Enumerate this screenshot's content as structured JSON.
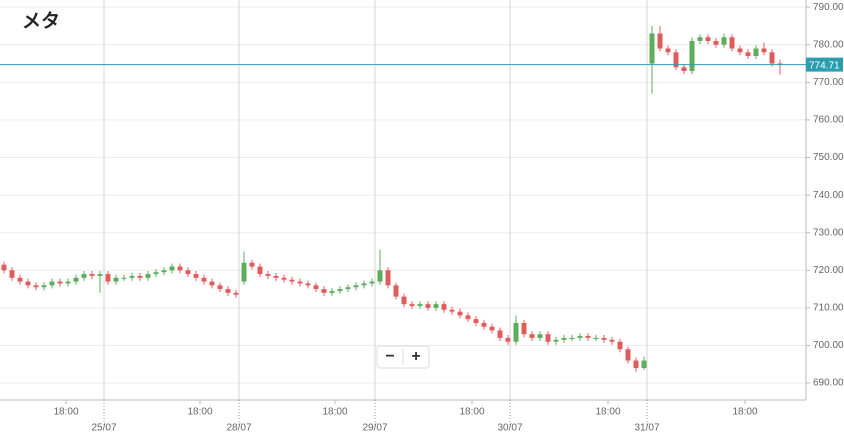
{
  "chart_data": {
    "type": "candlestick",
    "title": "メタ",
    "open": [
      721.5,
      720,
      718,
      717,
      716,
      715.5,
      716,
      717,
      716.5,
      717,
      718,
      719,
      718.5,
      719,
      717,
      718,
      718,
      718.5,
      718,
      719,
      719.5,
      720,
      721,
      720,
      719,
      718,
      717,
      716,
      715,
      714,
      717,
      722,
      721,
      719,
      718.5,
      718,
      717.5,
      717,
      716.5,
      716,
      715,
      714,
      714.5,
      715,
      715.5,
      716,
      716.5,
      717,
      720,
      716,
      713,
      711,
      710.5,
      711,
      710,
      711,
      709.5,
      709,
      708,
      707,
      706,
      705,
      704,
      702,
      701,
      706,
      703,
      702,
      703,
      701,
      701.5,
      702,
      702,
      702.5,
      702,
      702,
      701.5,
      701,
      699,
      696,
      694,
      775,
      783,
      779,
      778,
      774,
      773,
      781,
      782,
      781,
      780,
      782,
      779,
      778,
      777,
      779,
      778,
      775
    ],
    "high": [
      722.3,
      720.8,
      718.8,
      717.8,
      716.8,
      716.8,
      717.8,
      717.8,
      717.8,
      718.8,
      719.8,
      719.8,
      719.8,
      719.8,
      718.8,
      718.8,
      719.3,
      719.3,
      719.8,
      720.3,
      720.8,
      721.8,
      721.8,
      720.8,
      719.8,
      718.8,
      717.8,
      716.8,
      715.8,
      714.8,
      725,
      722.8,
      721.8,
      719.8,
      719.3,
      718.8,
      718.3,
      717.8,
      717.3,
      716.8,
      715.8,
      715.3,
      715.8,
      716.3,
      716.8,
      717.3,
      717.8,
      725.5,
      720.8,
      716.8,
      713.8,
      711.8,
      711.8,
      711.8,
      711.8,
      711.8,
      710.3,
      709.8,
      708.8,
      707.8,
      706.8,
      705.8,
      704.8,
      702.8,
      708,
      706.8,
      703.8,
      703.8,
      703.8,
      702.3,
      702.8,
      702.8,
      703.3,
      703.3,
      702.8,
      702.8,
      702.3,
      701.8,
      699.8,
      696.8,
      697,
      785,
      785,
      779.8,
      778.8,
      774.8,
      782,
      782.8,
      782.8,
      781.8,
      783,
      782.8,
      779.8,
      778.8,
      779.8,
      780.5,
      778.8,
      776
    ],
    "low": [
      719.2,
      717.2,
      716.2,
      715.2,
      714.7,
      714.7,
      715.2,
      715.7,
      715.7,
      716.2,
      717.2,
      717.7,
      714,
      716.2,
      716.2,
      717.2,
      717.2,
      717.2,
      717.2,
      718.2,
      718.7,
      719.2,
      719.2,
      718.2,
      717.2,
      716.2,
      715.2,
      714.2,
      713.2,
      712.7,
      716.2,
      720.2,
      718.2,
      717.7,
      717.2,
      716.7,
      716.2,
      715.7,
      715.2,
      714.2,
      713.2,
      713.2,
      713.7,
      714.2,
      714.7,
      715.2,
      715.7,
      716.2,
      715.2,
      712.2,
      710.2,
      709.7,
      709.7,
      709.2,
      709.2,
      708.7,
      708.2,
      707.2,
      706.2,
      705.2,
      704.2,
      703.2,
      701.2,
      700.2,
      700.2,
      702.2,
      701.2,
      701.2,
      700.2,
      700.2,
      700.7,
      701.2,
      701.2,
      701.2,
      701.2,
      700.7,
      700.2,
      698.2,
      695.2,
      693,
      693.5,
      767,
      778.2,
      777.2,
      773.2,
      772.2,
      772.2,
      780.2,
      780.2,
      779.2,
      779.2,
      778.2,
      777.2,
      776.2,
      776.2,
      777.2,
      774.2,
      772
    ],
    "close": [
      720,
      718,
      717,
      716,
      715.5,
      716,
      717,
      716.5,
      717,
      718,
      719,
      718.5,
      719,
      717,
      718,
      718,
      718.5,
      718,
      719,
      719.5,
      720,
      721,
      720,
      719,
      718,
      717,
      716,
      715,
      714,
      713.5,
      722,
      721,
      719,
      718.5,
      718,
      717.5,
      717,
      716.5,
      716,
      715,
      714,
      714.5,
      715,
      715.5,
      716,
      716.5,
      717,
      720,
      716,
      713,
      711,
      710.5,
      711,
      710,
      711,
      709.5,
      709,
      708,
      707,
      706,
      705,
      704,
      702,
      701,
      706,
      703,
      702,
      703,
      701,
      701.5,
      702,
      702,
      702.5,
      702,
      702,
      701.5,
      701,
      699,
      696,
      694,
      696,
      783,
      779,
      778,
      774,
      773,
      781,
      782,
      781,
      780,
      782,
      779,
      778,
      777,
      779,
      778,
      775,
      774.7
    ],
    "up_color": "#5cae5c",
    "down_color": "#e05c5c",
    "last_price": 774.71,
    "last_price_color": "#2a9dae",
    "xlim": [
      0,
      100.75
    ],
    "xticks": [
      {
        "value": 8.25,
        "label": "18:00"
      },
      {
        "value": 25,
        "label": "18:00"
      },
      {
        "value": 41.875,
        "label": "18:00"
      },
      {
        "value": 59,
        "label": "18:00"
      },
      {
        "value": 76,
        "label": "18:00"
      },
      {
        "value": 93.125,
        "label": "18:00"
      }
    ],
    "x_date_ticks": [
      {
        "value": 13,
        "label": "25/07"
      },
      {
        "value": 29.875,
        "label": "28/07"
      },
      {
        "value": 46.875,
        "label": "29/07"
      },
      {
        "value": 63.75,
        "label": "30/07"
      },
      {
        "value": 80.875,
        "label": "31/07"
      }
    ],
    "ylim": [
      685.5,
      791.9
    ],
    "yticks": [
      {
        "value": 690,
        "label": "690.00"
      },
      {
        "value": 700,
        "label": "700.00"
      },
      {
        "value": 710,
        "label": "710.00"
      },
      {
        "value": 720,
        "label": "720.00"
      },
      {
        "value": 730,
        "label": "730.00"
      },
      {
        "value": 740,
        "label": "740.00"
      },
      {
        "value": 750,
        "label": "750.00"
      },
      {
        "value": 760,
        "label": "760.00"
      },
      {
        "value": 770,
        "label": "770.00"
      },
      {
        "value": 780,
        "label": "780.00"
      },
      {
        "value": 790,
        "label": "790.00"
      }
    ],
    "grid": true,
    "zoom_controls": [
      "−",
      "+"
    ]
  }
}
